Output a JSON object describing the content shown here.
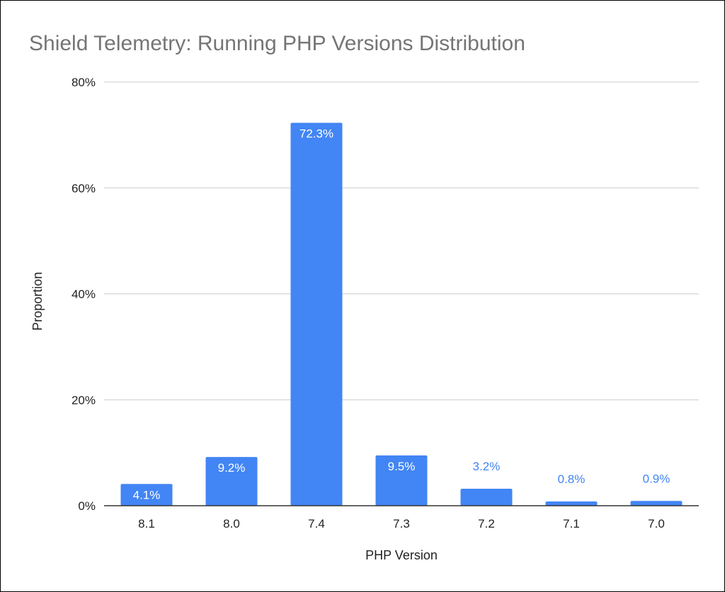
{
  "chart_data": {
    "type": "bar",
    "title": "Shield Telemetry: Running PHP Versions Distribution",
    "xlabel": "PHP Version",
    "ylabel": "Proportion",
    "categories": [
      "8.1",
      "8.0",
      "7.4",
      "7.3",
      "7.2",
      "7.1",
      "7.0"
    ],
    "values": [
      4.1,
      9.2,
      72.3,
      9.5,
      3.2,
      0.8,
      0.9
    ],
    "data_labels": [
      "4.1%",
      "9.2%",
      "72.3%",
      "9.5%",
      "3.2%",
      "0.8%",
      "0.9%"
    ],
    "ylim": [
      0,
      80
    ],
    "y_ticks": [
      0,
      20,
      40,
      60,
      80
    ],
    "y_tick_labels": [
      "0%",
      "20%",
      "40%",
      "60%",
      "80%"
    ],
    "grid": true,
    "legend": "none",
    "colors": {
      "bar": "#4285f4",
      "label_inside": "#ffffff",
      "label_outside": "#4285f4",
      "title": "#757575",
      "gridline": "#cccccc",
      "axis": "#333333"
    }
  }
}
